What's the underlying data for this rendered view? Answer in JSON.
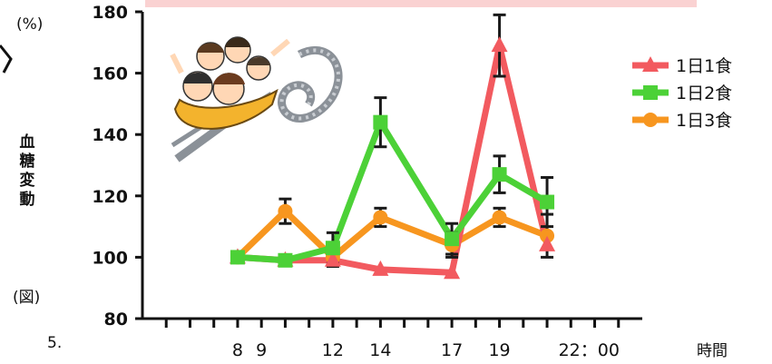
{
  "chart_data": {
    "type": "line",
    "unit_label": "(%)",
    "figure_label": "(図)",
    "ylabel": "血糖変動",
    "xlabel": "時間",
    "ylim": [
      80,
      180
    ],
    "yticks": [
      80,
      100,
      120,
      140,
      160,
      180
    ],
    "xlim": [
      4,
      25
    ],
    "xtick_labels": [
      {
        "x": 8,
        "label": "8"
      },
      {
        "x": 9,
        "label": "9"
      },
      {
        "x": 12,
        "label": "12"
      },
      {
        "x": 14,
        "label": "14"
      },
      {
        "x": 17,
        "label": "17"
      },
      {
        "x": 19,
        "label": "19"
      },
      {
        "x": 22,
        "label": "22：00"
      }
    ],
    "cropped_left_label": "5.",
    "legend_position": "right",
    "grid": false,
    "series": [
      {
        "name": "1日1食",
        "color": "#f25a5f",
        "marker": "triangle",
        "points": [
          {
            "x": 8,
            "y": 100
          },
          {
            "x": 10,
            "y": 99
          },
          {
            "x": 12,
            "y": 99
          },
          {
            "x": 14,
            "y": 96
          },
          {
            "x": 17,
            "y": 95
          },
          {
            "x": 19,
            "y": 169,
            "err": 10
          },
          {
            "x": 21,
            "y": 104
          }
        ]
      },
      {
        "name": "1日2食",
        "color": "#4cd137",
        "marker": "square",
        "points": [
          {
            "x": 8,
            "y": 100
          },
          {
            "x": 10,
            "y": 99
          },
          {
            "x": 12,
            "y": 103,
            "err": 5
          },
          {
            "x": 14,
            "y": 144,
            "err": 8
          },
          {
            "x": 17,
            "y": 106,
            "err": 5
          },
          {
            "x": 19,
            "y": 127,
            "err": 6
          },
          {
            "x": 21,
            "y": 118,
            "err": 8
          }
        ]
      },
      {
        "name": "1日3食",
        "color": "#f7961f",
        "marker": "circle",
        "points": [
          {
            "x": 8,
            "y": 100
          },
          {
            "x": 10,
            "y": 115,
            "err": 4
          },
          {
            "x": 12,
            "y": 100,
            "err": 3
          },
          {
            "x": 14,
            "y": 113,
            "err": 3
          },
          {
            "x": 17,
            "y": 104,
            "err": 4
          },
          {
            "x": 19,
            "y": 113,
            "err": 3
          },
          {
            "x": 21,
            "y": 107,
            "err": 7
          }
        ]
      }
    ]
  },
  "colors": {
    "top_band": "#fad2d2",
    "coaster_track": "#8b9198",
    "coaster_car": "#f3b32d"
  }
}
